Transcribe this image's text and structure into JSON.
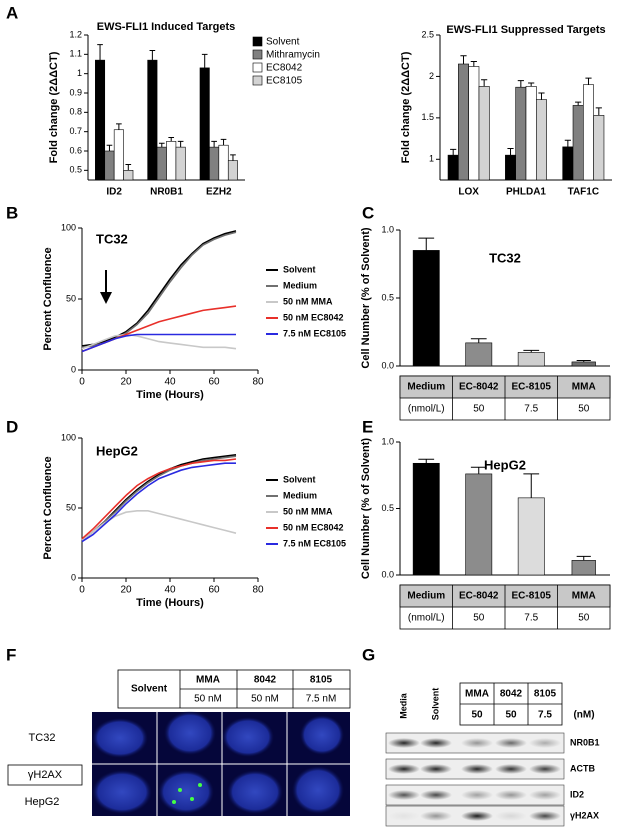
{
  "panel_labels": [
    "A",
    "B",
    "C",
    "D",
    "E",
    "F",
    "G"
  ],
  "chart_data": [
    {
      "type": "bar",
      "title": "EWS-FLI1 Induced Targets",
      "ylabel": "Fold change (2ΔΔCT)",
      "categories": [
        "ID2",
        "NR0B1",
        "EZH2"
      ],
      "series": [
        {
          "name": "Solvent",
          "color": "#000000",
          "values": [
            1.07,
            1.07,
            1.03
          ],
          "errors": [
            0.08,
            0.05,
            0.07
          ]
        },
        {
          "name": "Mithramycin",
          "color": "#808080",
          "values": [
            0.6,
            0.62,
            0.62
          ],
          "errors": [
            0.03,
            0.02,
            0.03
          ]
        },
        {
          "name": "EC8042",
          "color": "#ffffff",
          "values": [
            0.71,
            0.65,
            0.63
          ],
          "errors": [
            0.03,
            0.02,
            0.03
          ]
        },
        {
          "name": "EC8105",
          "color": "#d3d3d3",
          "values": [
            0.5,
            0.62,
            0.55
          ],
          "errors": [
            0.03,
            0.03,
            0.03
          ]
        }
      ],
      "ylim": [
        0.45,
        1.2
      ],
      "yticks": [
        0.5,
        0.6,
        0.7,
        0.8,
        0.9,
        1,
        1.1,
        1.2
      ]
    },
    {
      "type": "bar",
      "title": "EWS-FLI1 Suppressed Targets",
      "ylabel": "Fold change (2ΔΔCT)",
      "categories": [
        "LOX",
        "PHLDA1",
        "TAF1C"
      ],
      "series": [
        {
          "color": "#000000",
          "values": [
            1.05,
            1.05,
            1.15
          ],
          "errors": [
            0.07,
            0.08,
            0.08
          ]
        },
        {
          "color": "#808080",
          "values": [
            2.15,
            1.87,
            1.65
          ],
          "errors": [
            0.1,
            0.08,
            0.04
          ]
        },
        {
          "color": "#ffffff",
          "values": [
            2.12,
            1.88,
            1.9
          ],
          "errors": [
            0.06,
            0.04,
            0.08
          ]
        },
        {
          "color": "#d3d3d3",
          "values": [
            1.88,
            1.72,
            1.53
          ],
          "errors": [
            0.08,
            0.08,
            0.09
          ]
        }
      ],
      "ylim": [
        0.75,
        2.5
      ],
      "yticks": [
        1,
        1.5,
        2,
        2.5
      ]
    },
    {
      "type": "line",
      "title": "TC32",
      "xlabel": "Time (Hours)",
      "ylabel": "Percent Confluence",
      "x": [
        0,
        5,
        10,
        15,
        20,
        25,
        30,
        35,
        40,
        45,
        50,
        55,
        60,
        65,
        70
      ],
      "series": [
        {
          "name": "Solvent",
          "color": "#000000",
          "values": [
            17,
            18,
            20,
            23,
            27,
            33,
            42,
            53,
            64,
            74,
            82,
            89,
            93,
            96,
            98
          ]
        },
        {
          "name": "Medium",
          "color": "#707070",
          "values": [
            16,
            17,
            19,
            22,
            26,
            32,
            40,
            51,
            62,
            72,
            81,
            88,
            92,
            95,
            97
          ]
        },
        {
          "name": "50 nM MMA",
          "color": "#c8c8c8",
          "values": [
            15,
            18,
            21,
            24,
            25,
            24,
            22,
            20,
            19,
            18,
            17,
            16,
            16,
            16,
            15
          ]
        },
        {
          "name": "50 nM EC8042",
          "color": "#e8302a",
          "values": [
            13,
            16,
            19,
            22,
            25,
            28,
            31,
            34,
            36,
            38,
            40,
            42,
            43,
            44,
            45
          ]
        },
        {
          "name": "7.5 nM EC8105",
          "color": "#2a2ae0",
          "values": [
            13,
            16,
            19,
            22,
            24,
            25,
            25,
            25,
            25,
            25,
            25,
            25,
            25,
            25,
            25
          ]
        }
      ],
      "xlim": [
        0,
        80
      ],
      "xticks": [
        0,
        20,
        40,
        60,
        80
      ],
      "ylim": [
        0,
        100
      ],
      "yticks": [
        0,
        50,
        100
      ]
    },
    {
      "type": "bar",
      "title": "TC32",
      "ylabel": "Cell Number (% of Solvent)",
      "categories": [
        "Medium",
        "EC-8042",
        "EC-8105",
        "MMA"
      ],
      "table_row": [
        "(nmol/L)",
        "50",
        "7.5",
        "50"
      ],
      "values": [
        0.85,
        0.17,
        0.1,
        0.03
      ],
      "errors": [
        0.09,
        0.03,
        0.015,
        0.01
      ],
      "colors": [
        "#000000",
        "#8c8c8c",
        "#cfcfcf",
        "#6e6e6e"
      ],
      "ylim": [
        0,
        1
      ],
      "yticks": [
        {
          "value": 0,
          "label": "0.0"
        },
        {
          "value": 0.5,
          "label": "0.5"
        },
        {
          "value": 1,
          "label": "1.0"
        }
      ]
    },
    {
      "type": "line",
      "title": "HepG2",
      "xlabel": "Time (Hours)",
      "ylabel": "Percent Confluence",
      "x": [
        0,
        5,
        10,
        15,
        20,
        25,
        30,
        35,
        40,
        45,
        50,
        55,
        60,
        65,
        70
      ],
      "series": [
        {
          "name": "Solvent",
          "color": "#000000",
          "values": [
            27,
            33,
            40,
            48,
            56,
            63,
            69,
            74,
            78,
            81,
            83,
            85,
            86,
            87,
            88
          ]
        },
        {
          "name": "Medium",
          "color": "#707070",
          "values": [
            27,
            33,
            40,
            47,
            55,
            62,
            68,
            73,
            77,
            80,
            82,
            84,
            85,
            86,
            87
          ]
        },
        {
          "name": "50 nM MMA",
          "color": "#c8c8c8",
          "values": [
            27,
            33,
            39,
            44,
            47,
            48,
            48,
            46,
            44,
            42,
            40,
            38,
            36,
            34,
            32
          ]
        },
        {
          "name": "50 nM EC8042",
          "color": "#e8302a",
          "values": [
            28,
            35,
            43,
            51,
            59,
            66,
            71,
            75,
            78,
            80,
            82,
            83,
            84,
            84,
            85
          ]
        },
        {
          "name": "7.5 nM EC8105",
          "color": "#2a2ae0",
          "values": [
            26,
            31,
            38,
            45,
            53,
            60,
            66,
            71,
            74,
            77,
            79,
            80,
            81,
            82,
            82
          ]
        }
      ],
      "xlim": [
        0,
        80
      ],
      "xticks": [
        0,
        20,
        40,
        60,
        80
      ],
      "ylim": [
        0,
        100
      ],
      "yticks": [
        0,
        50,
        100
      ]
    },
    {
      "type": "bar",
      "title": "HepG2",
      "ylabel": "Cell Number (% of Solvent)",
      "categories": [
        "Medium",
        "EC-8042",
        "EC-8105",
        "MMA"
      ],
      "table_row": [
        "(nmol/L)",
        "50",
        "7.5",
        "50"
      ],
      "values": [
        0.84,
        0.76,
        0.58,
        0.11
      ],
      "errors": [
        0.03,
        0.05,
        0.18,
        0.03
      ],
      "colors": [
        "#000000",
        "#8c8c8c",
        "#dcdcdc",
        "#8c8c8c"
      ],
      "ylim": [
        0,
        1
      ],
      "yticks": [
        {
          "value": 0,
          "label": "0.0"
        },
        {
          "value": 0.5,
          "label": "0.5"
        },
        {
          "value": 1,
          "label": "1.0"
        }
      ]
    }
  ],
  "panel_f": {
    "columns": [
      {
        "drug": "Solvent"
      },
      {
        "drug": "MMA",
        "dose": "50 nM"
      },
      {
        "drug": "8042",
        "dose": "50 nM"
      },
      {
        "drug": "8105",
        "dose": "7.5 nM"
      }
    ],
    "rows": [
      "TC32",
      "HepG2"
    ],
    "stain": "γH2AX"
  },
  "panel_g": {
    "lanes": [
      "Media",
      "Solvent",
      "MMA",
      "8042",
      "8105"
    ],
    "doses": [
      "50",
      "50",
      "7.5"
    ],
    "unit": "(nM)",
    "proteins": [
      "NR0B1",
      "ACTB",
      "ID2",
      "γH2AX"
    ]
  }
}
